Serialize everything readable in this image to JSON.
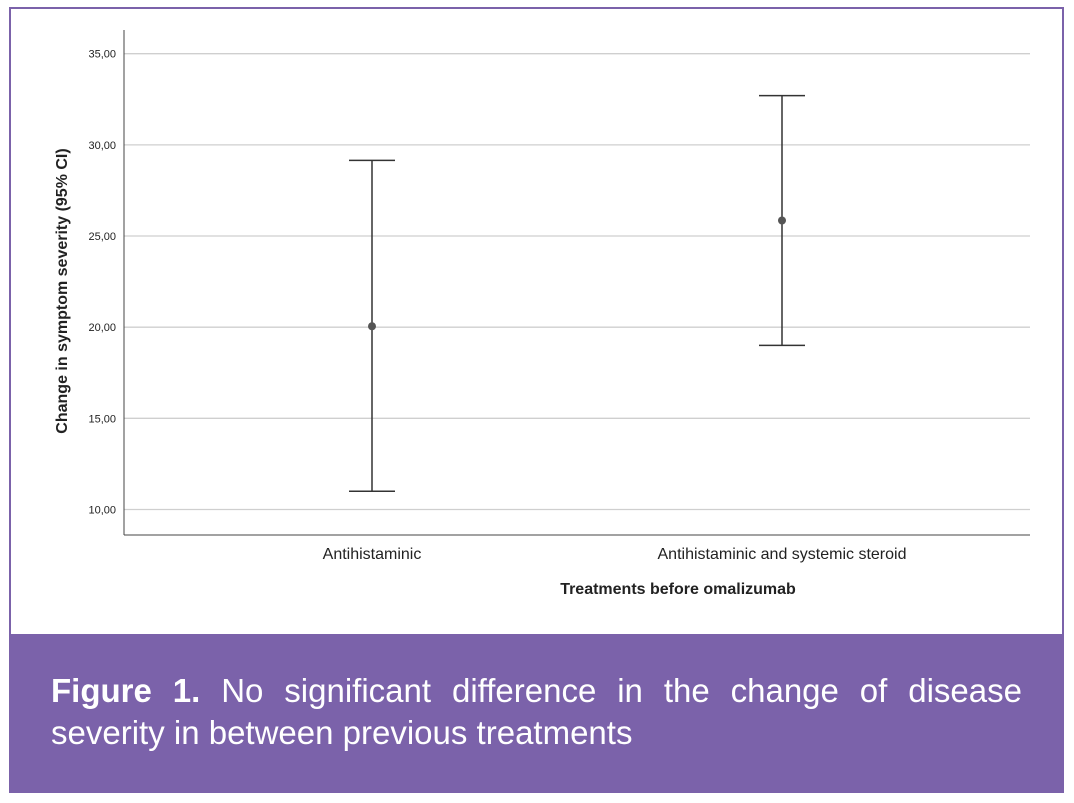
{
  "chart_data": {
    "type": "errorbar",
    "x_label": "Treatments before omalizumab",
    "y_label": "Change in symptom severity (95% CI)",
    "categories": [
      "Antihistaminic",
      "Antihistaminic and systemic steroid"
    ],
    "series": [
      {
        "color": "#555555",
        "values": [
          20.05,
          25.85
        ],
        "ci_lower": [
          11.0,
          19.0
        ],
        "ci_upper": [
          29.15,
          32.7
        ]
      }
    ],
    "ylim": [
      8.6,
      36.3
    ],
    "yticks": [
      {
        "value": 10,
        "label": "10,00"
      },
      {
        "value": 15,
        "label": "15,00"
      },
      {
        "value": 20,
        "label": "20,00"
      },
      {
        "value": 25,
        "label": "25,00"
      },
      {
        "value": 30,
        "label": "30,00"
      },
      {
        "value": 35,
        "label": "35,00"
      }
    ],
    "grid": true
  },
  "caption": {
    "label": "Figure 1.",
    "text": "No significant difference in the change of disease severity in between previous treatments"
  }
}
